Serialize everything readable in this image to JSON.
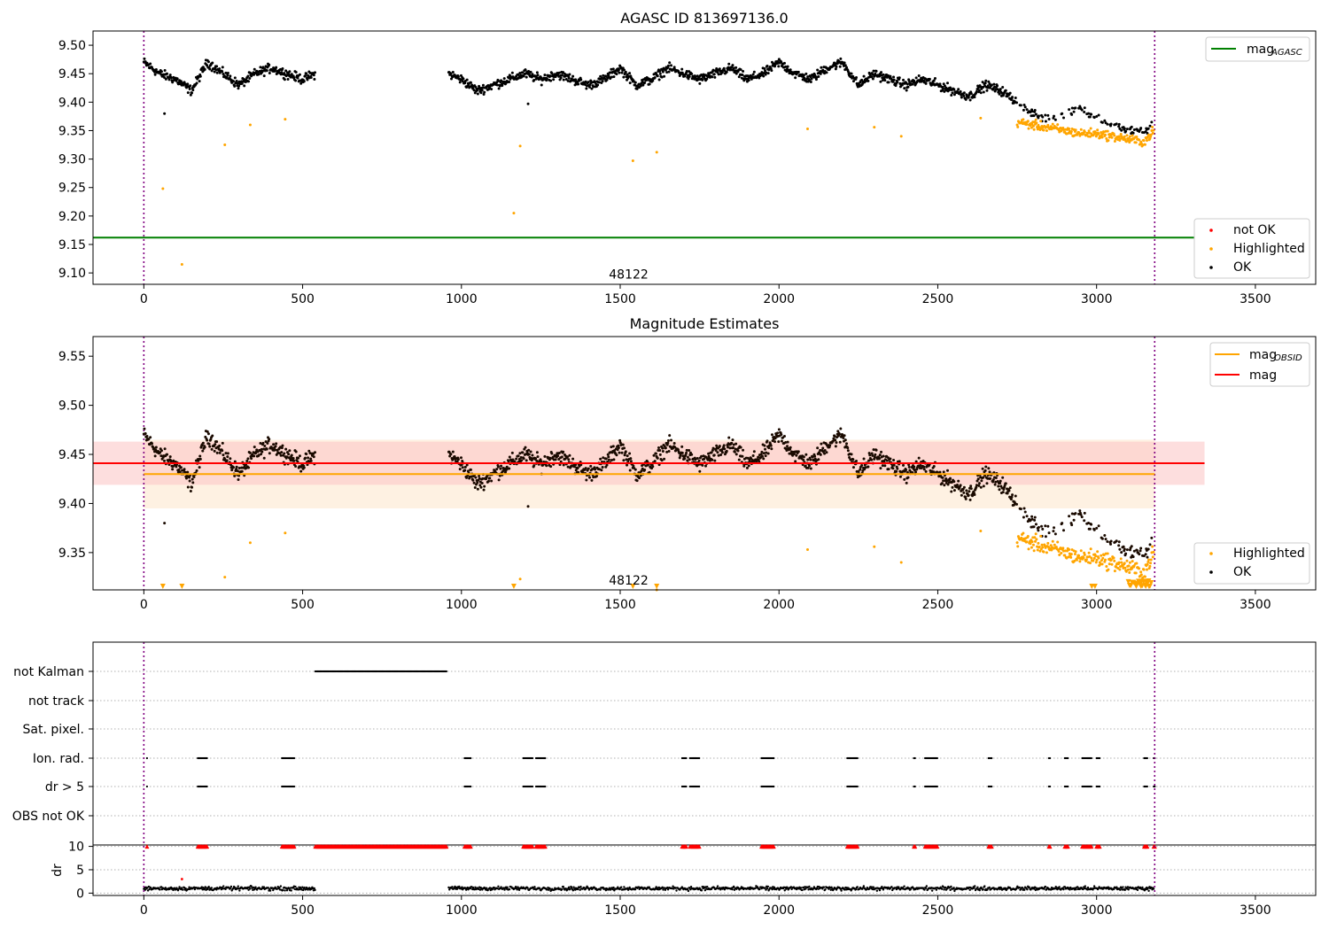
{
  "chart_data": [
    {
      "type": "scatter",
      "title": "AGASC ID 813697136.0",
      "xlim": [
        -160,
        3690
      ],
      "ylim": [
        9.08,
        9.525
      ],
      "x_ticks": [
        0,
        500,
        1000,
        1500,
        2000,
        2500,
        3000,
        3500
      ],
      "y_ticks": [
        9.1,
        9.15,
        9.2,
        9.25,
        9.3,
        9.35,
        9.4,
        9.45,
        9.5
      ],
      "vlines": [
        0,
        3183
      ],
      "hline": {
        "name": "mag_AGASC",
        "value": 9.162,
        "color": "#008000",
        "x_range": [
          -160,
          3340
        ]
      },
      "legend_line": {
        "label": "mag",
        "subscript": "AGASC"
      },
      "legend_markers": [
        {
          "label": "not OK",
          "color": "#ff0000"
        },
        {
          "label": "Highlighted",
          "color": "#ffa500"
        },
        {
          "label": "OK",
          "color": "#000000"
        }
      ],
      "annotation": {
        "text": "48122",
        "x": 1590,
        "y": 9.098
      },
      "series": [
        {
          "name": "OK",
          "color": "#000000",
          "segments": [
            {
              "x": [
                0,
                50,
                100,
                150,
                200,
                250,
                300,
                350,
                400,
                450,
                500,
                540
              ],
              "y": [
                9.47,
                9.45,
                9.44,
                9.42,
                9.47,
                9.45,
                9.43,
                9.45,
                9.46,
                9.45,
                9.44,
                9.45
              ]
            },
            {
              "x": [
                960,
                1000,
                1050,
                1100,
                1150,
                1200,
                1250,
                1300,
                1350,
                1400,
                1450,
                1500,
                1550,
                1600,
                1650,
                1700,
                1750,
                1800,
                1850,
                1900,
                1950,
                2000,
                2050,
                2100,
                2150,
                2200,
                2250,
                2300,
                2350,
                2400,
                2450,
                2500,
                2550,
                2600,
                2650,
                2700,
                2750,
                2800,
                2850,
                2900,
                2950,
                3000,
                3050,
                3100,
                3150,
                3180
              ],
              "y": [
                9.45,
                9.44,
                9.42,
                9.43,
                9.44,
                9.45,
                9.44,
                9.45,
                9.44,
                9.43,
                9.44,
                9.46,
                9.43,
                9.44,
                9.46,
                9.45,
                9.44,
                9.45,
                9.46,
                9.44,
                9.45,
                9.47,
                9.45,
                9.44,
                9.46,
                9.47,
                9.43,
                9.45,
                9.44,
                9.43,
                9.44,
                9.43,
                9.42,
                9.41,
                9.43,
                9.42,
                9.4,
                9.38,
                9.37,
                9.38,
                9.39,
                9.37,
                9.36,
                9.35,
                9.35,
                9.36
              ]
            }
          ],
          "spread": 0.012,
          "outliers": [
            {
              "x": 65,
              "y": 9.38
            },
            {
              "x": 1210,
              "y": 9.397
            }
          ]
        },
        {
          "name": "Highlighted",
          "color": "#ffa500",
          "x": [
            60,
            120,
            255,
            335,
            445,
            1165,
            1185,
            1540,
            1615,
            2090,
            2300,
            2385,
            2635
          ],
          "y": [
            9.248,
            9.115,
            9.325,
            9.36,
            9.37,
            9.205,
            9.323,
            9.297,
            9.312,
            9.353,
            9.356,
            9.34,
            9.372
          ],
          "band": {
            "x": [
              2750,
              2800,
              2850,
              2900,
              2950,
              3000,
              3050,
              3100,
              3150,
              3180
            ],
            "y": [
              9.365,
              9.36,
              9.355,
              9.35,
              9.345,
              9.345,
              9.34,
              9.335,
              9.33,
              9.35
            ],
            "spread": 0.012
          }
        }
      ]
    },
    {
      "type": "scatter",
      "title": "Magnitude Estimates",
      "xlim": [
        -160,
        3690
      ],
      "ylim": [
        9.312,
        9.57
      ],
      "x_ticks": [
        0,
        500,
        1000,
        1500,
        2000,
        2500,
        3000,
        3500
      ],
      "y_ticks": [
        9.35,
        9.4,
        9.45,
        9.5,
        9.55
      ],
      "vlines": [
        0,
        3183
      ],
      "hlines": [
        {
          "name": "mag_OBSID",
          "value": 9.43,
          "color": "#ffa500",
          "x_range": [
            0,
            3183
          ],
          "band": [
            9.395,
            9.465
          ],
          "band_color": "#fde8cf"
        },
        {
          "name": "mag",
          "value": 9.441,
          "color": "#ff0000",
          "x_range": [
            -160,
            3340
          ],
          "band": [
            9.419,
            9.463
          ],
          "band_color": "#fcc8c8"
        }
      ],
      "legend_lines": [
        {
          "label": "mag",
          "subscript": "OBSID",
          "color": "#ffa500"
        },
        {
          "label": "mag",
          "subscript": "",
          "color": "#ff0000"
        }
      ],
      "legend_markers": [
        {
          "label": "Highlighted",
          "color": "#ffa500"
        },
        {
          "label": "OK",
          "color": "#000000"
        }
      ],
      "annotation": {
        "text": "48122",
        "x": 1590,
        "y": 9.322
      },
      "lower_limit_markers": {
        "color": "#ffa500",
        "x": [
          60,
          120,
          1165,
          1540,
          1615,
          2985,
          2995,
          3125,
          3140,
          3155,
          3165
        ]
      },
      "series_ref": "same data as panel 1"
    },
    {
      "type": "scatter",
      "title": "",
      "xlim": [
        -160,
        3690
      ],
      "x_ticks": [
        0,
        500,
        1000,
        1500,
        2000,
        2500,
        3000,
        3500
      ],
      "vlines": [
        0,
        3183
      ],
      "flag_rows": [
        "not Kalman",
        "not track",
        "Sat. pixel.",
        "Ion. rad.",
        "dr > 5",
        "OBS not OK"
      ],
      "flags": {
        "not Kalman": [
          [
            540,
            955
          ]
        ],
        "not track": [],
        "Sat. pixel.": [],
        "Ion. rad.": [
          [
            10,
            12
          ],
          [
            170,
            200
          ],
          [
            435,
            475
          ],
          [
            1010,
            1030
          ],
          [
            1195,
            1225
          ],
          [
            1235,
            1265
          ],
          [
            1695,
            1710
          ],
          [
            1720,
            1750
          ],
          [
            1945,
            1985
          ],
          [
            2215,
            2250
          ],
          [
            2425,
            2430
          ],
          [
            2460,
            2500
          ],
          [
            2660,
            2670
          ],
          [
            2850,
            2855
          ],
          [
            2900,
            2910
          ],
          [
            2955,
            2985
          ],
          [
            3000,
            3010
          ],
          [
            3150,
            3160
          ],
          [
            3180,
            3185
          ]
        ],
        "dr > 5": [
          [
            10,
            12
          ],
          [
            170,
            200
          ],
          [
            435,
            475
          ],
          [
            1010,
            1030
          ],
          [
            1195,
            1225
          ],
          [
            1235,
            1265
          ],
          [
            1695,
            1710
          ],
          [
            1720,
            1750
          ],
          [
            1945,
            1985
          ],
          [
            2215,
            2250
          ],
          [
            2425,
            2430
          ],
          [
            2460,
            2500
          ],
          [
            2660,
            2670
          ],
          [
            2850,
            2855
          ],
          [
            2900,
            2910
          ],
          [
            2955,
            2985
          ],
          [
            3000,
            3010
          ],
          [
            3150,
            3160
          ],
          [
            3180,
            3185
          ]
        ],
        "OBS not OK": []
      },
      "dr_plot": {
        "ylabel": "dr",
        "y_ticks": [
          0,
          5,
          10
        ],
        "ylim": [
          -0.5,
          10.3
        ],
        "capped_value": 10,
        "capped_color": "#ff0000",
        "typical_dr": 1.0,
        "spike": {
          "x": 120,
          "y": 3.0
        }
      }
    }
  ]
}
